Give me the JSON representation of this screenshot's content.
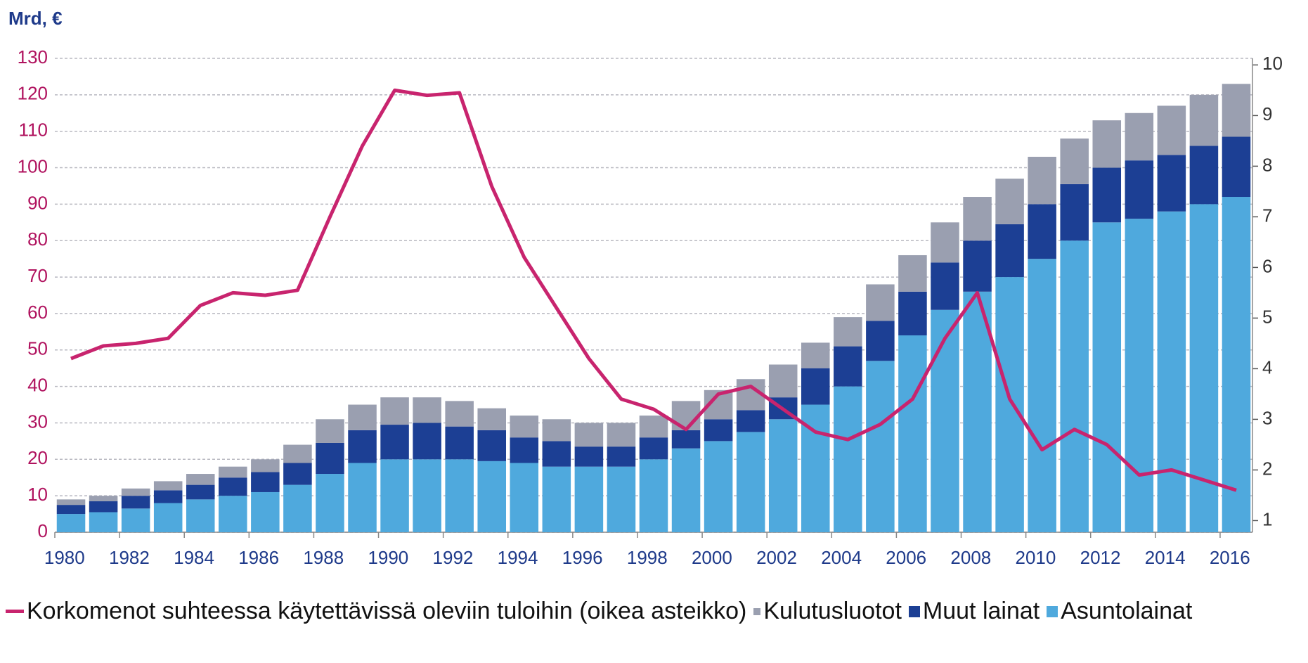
{
  "chart_data": {
    "type": "bar",
    "y_label": "Mrd, €",
    "categories": [
      "1980",
      null,
      "1982",
      null,
      "1984",
      null,
      "1986",
      null,
      "1988",
      null,
      "1990",
      null,
      "1992",
      null,
      "1994",
      null,
      "1996",
      null,
      "1998",
      null,
      "2000",
      null,
      "2002",
      null,
      "2004",
      null,
      "2006",
      null,
      "2008",
      null,
      "2010",
      null,
      "2012",
      null,
      "2014",
      null,
      "2016"
    ],
    "stacked": true,
    "series": [
      {
        "name": "Korkomenot suhteessa käytettävissä oleviin tuloihin (oikea asteikko)",
        "type": "line",
        "axis": "y2",
        "color": "#c8246e",
        "values": [
          4.2,
          4.45,
          4.5,
          4.6,
          5.25,
          5.5,
          5.45,
          5.55,
          7.0,
          8.4,
          9.5,
          9.4,
          9.45,
          7.6,
          6.2,
          5.2,
          4.2,
          3.4,
          3.2,
          2.8,
          3.5,
          3.65,
          3.2,
          2.75,
          2.6,
          2.9,
          3.4,
          4.6,
          5.5,
          3.4,
          2.4,
          2.8,
          2.5,
          1.9,
          2.0,
          1.8,
          1.6
        ]
      },
      {
        "name": "Kulutusluotot",
        "type": "bar",
        "color": "#9a9fb0",
        "values": [
          1.5,
          1.5,
          2,
          2.5,
          3,
          3,
          3.5,
          5,
          6.5,
          7,
          7.5,
          7,
          7,
          6,
          6,
          6,
          6.5,
          6.5,
          6,
          8,
          8,
          8.5,
          9,
          7,
          8,
          10,
          10,
          11,
          12,
          12.5,
          13,
          12.5,
          13,
          13,
          13.5,
          14,
          14.5
        ]
      },
      {
        "name": "Muut lainat",
        "type": "bar",
        "color": "#1c3f94",
        "values": [
          2.5,
          3,
          3.5,
          3.5,
          4,
          5,
          5.5,
          6,
          8.5,
          9,
          9.5,
          10,
          9,
          8.5,
          7,
          7,
          5.5,
          5.5,
          6,
          5,
          6,
          6,
          6,
          10,
          11,
          11,
          12,
          13,
          14,
          14.5,
          15,
          15.5,
          15,
          16,
          15.5,
          16,
          16.5
        ]
      },
      {
        "name": "Asuntolainat",
        "type": "bar",
        "color": "#4fa9dd",
        "values": [
          5,
          5.5,
          6.5,
          8,
          9,
          10,
          11,
          13,
          16,
          19,
          20,
          20,
          20,
          19.5,
          19,
          18,
          18,
          18,
          20,
          23,
          25,
          27.5,
          31,
          35,
          40,
          47,
          54,
          61,
          66,
          70,
          75,
          80,
          85,
          86,
          88,
          90,
          92
        ]
      }
    ],
    "ylim": [
      0,
      130
    ],
    "yticks": [
      0,
      10,
      20,
      30,
      40,
      50,
      60,
      70,
      80,
      90,
      100,
      110,
      120,
      130
    ],
    "y2lim": [
      0.77,
      10.13
    ],
    "y2ticks": [
      1,
      2,
      3,
      4,
      5,
      6,
      7,
      8,
      9,
      10
    ],
    "grid": true,
    "legend": "bottom"
  }
}
